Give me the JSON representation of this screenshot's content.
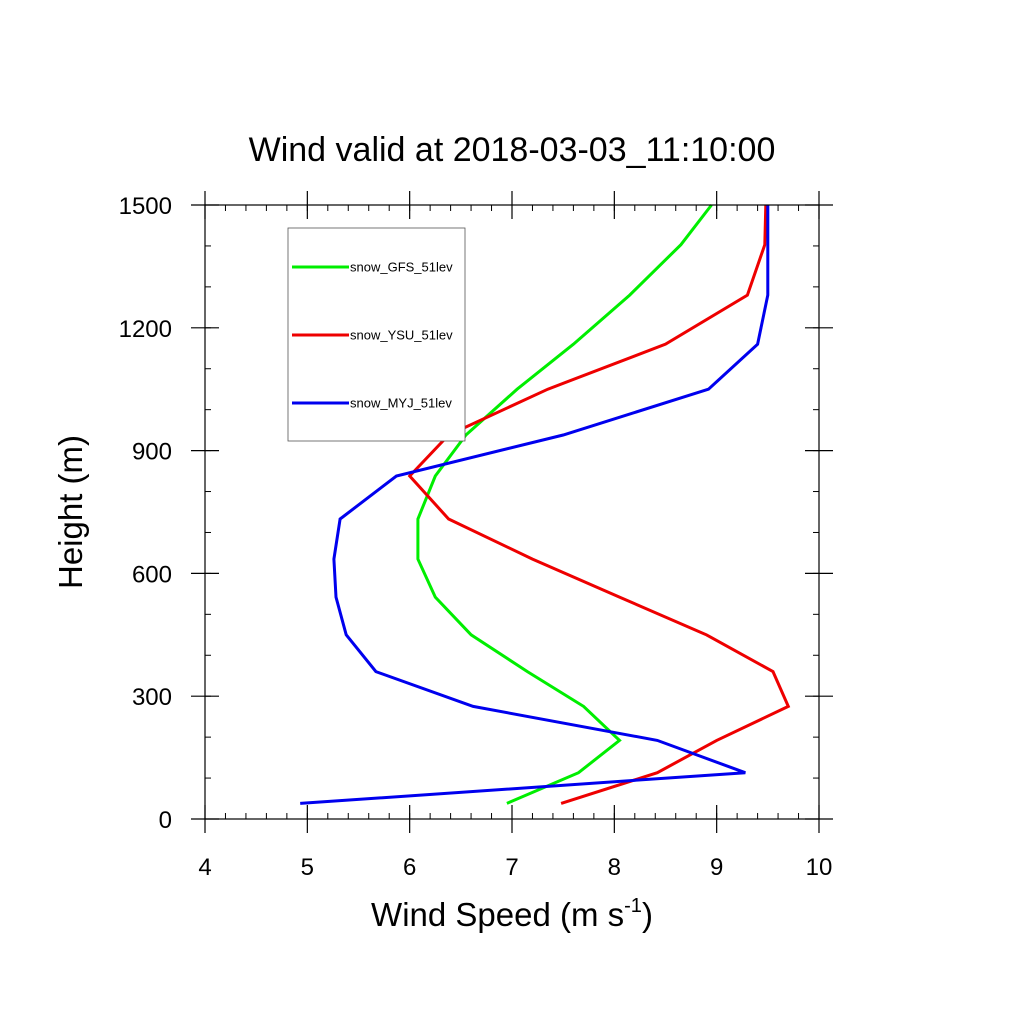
{
  "chart_data": {
    "type": "line",
    "title": "Wind valid at 2018-03-03_11:10:00",
    "xlabel": "Wind Speed (m s",
    "xlabel_superscript": "-1",
    "xlabel_suffix": ")",
    "ylabel": "Height (m)",
    "xlim": [
      4,
      10
    ],
    "ylim": [
      0,
      1500
    ],
    "x_ticks": [
      4,
      5,
      6,
      7,
      8,
      9,
      10
    ],
    "y_ticks": [
      0,
      300,
      600,
      900,
      1200,
      1500
    ],
    "x_tick_labels": [
      "4",
      "5",
      "6",
      "7",
      "8",
      "9",
      "10"
    ],
    "y_tick_labels": [
      "0",
      "300",
      "600",
      "900",
      "1200",
      "1500"
    ],
    "x_minor_step": 0.2,
    "y_minor_step": 100,
    "grid": false,
    "legend_placement": "top-left",
    "series": [
      {
        "name": "snow_GFS_51lev",
        "color": "#00ee00",
        "points": [
          [
            6.95,
            38
          ],
          [
            7.65,
            113
          ],
          [
            8.05,
            192
          ],
          [
            7.7,
            275
          ],
          [
            7.15,
            360
          ],
          [
            6.6,
            450
          ],
          [
            6.25,
            542
          ],
          [
            6.08,
            635
          ],
          [
            6.08,
            733
          ],
          [
            6.25,
            838
          ],
          [
            6.55,
            938
          ],
          [
            7.05,
            1050
          ],
          [
            7.6,
            1160
          ],
          [
            8.15,
            1280
          ],
          [
            8.65,
            1403
          ],
          [
            8.95,
            1500
          ]
        ]
      },
      {
        "name": "snow_YSU_51lev",
        "color": "#ee0000",
        "points": [
          [
            7.48,
            38
          ],
          [
            8.42,
            113
          ],
          [
            9.0,
            192
          ],
          [
            9.7,
            275
          ],
          [
            9.55,
            360
          ],
          [
            8.9,
            450
          ],
          [
            8.05,
            542
          ],
          [
            7.2,
            635
          ],
          [
            6.38,
            733
          ],
          [
            6.0,
            838
          ],
          [
            6.38,
            938
          ],
          [
            7.35,
            1050
          ],
          [
            8.5,
            1160
          ],
          [
            9.3,
            1280
          ],
          [
            9.47,
            1403
          ],
          [
            9.48,
            1500
          ]
        ]
      },
      {
        "name": "snow_MYJ_51lev",
        "color": "#0000ee",
        "points": [
          [
            4.93,
            38
          ],
          [
            9.28,
            113
          ],
          [
            8.42,
            192
          ],
          [
            6.62,
            275
          ],
          [
            5.67,
            360
          ],
          [
            5.38,
            450
          ],
          [
            5.28,
            542
          ],
          [
            5.26,
            635
          ],
          [
            5.32,
            733
          ],
          [
            5.87,
            838
          ],
          [
            7.5,
            938
          ],
          [
            8.92,
            1050
          ],
          [
            9.4,
            1160
          ],
          [
            9.5,
            1280
          ],
          [
            9.5,
            1403
          ],
          [
            9.5,
            1500
          ]
        ]
      }
    ]
  }
}
